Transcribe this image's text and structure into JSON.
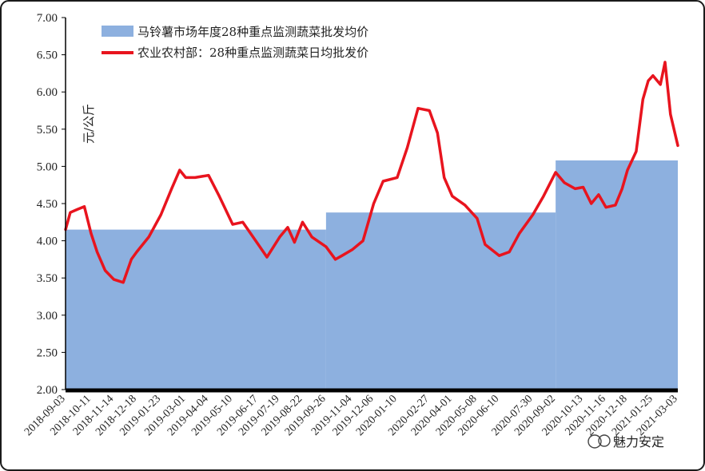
{
  "chart_data": {
    "type": "area",
    "ylabel": "元/公斤",
    "ylim": [
      2.0,
      7.0
    ],
    "yticks": [
      "2.00",
      "2.50",
      "3.00",
      "3.50",
      "4.00",
      "4.50",
      "5.00",
      "5.50",
      "6.00",
      "6.50",
      "7.00"
    ],
    "xticks": [
      "2018-09-03",
      "2018-10-11",
      "2018-11-14",
      "2018-12-18",
      "2019-01-23",
      "2019-03-01",
      "2019-04-04",
      "2019-05-10",
      "2019-06-17",
      "2019-07-19",
      "2019-08-22",
      "2019-09-26",
      "2019-11-04",
      "2019-12-06",
      "2020-01-10",
      "2020-02-27",
      "2020-04-01",
      "2020-05-08",
      "2020-06-10",
      "2020-07-30",
      "2020-09-02",
      "2020-10-13",
      "2020-11-16",
      "2020-12-18",
      "2021-01-25",
      "2021-03-03"
    ],
    "legend": {
      "area_label": "马铃薯市场年度28种重点监测蔬菜批发均价",
      "line_label": "农业农村部：28种重点监测蔬菜日均批发价"
    },
    "colors": {
      "area": "#8DB0DF",
      "line": "#E8141E",
      "axis": "#000000"
    },
    "series": [
      {
        "name": "马铃薯市场年度28种重点监测蔬菜批发均价",
        "kind": "step-area",
        "x": [
          "2018-09-03",
          "2019-09-26",
          "2020-09-02",
          "2021-03-03"
        ],
        "values": [
          4.15,
          4.38,
          5.08,
          5.08
        ]
      },
      {
        "name": "农业农村部：28种重点监测蔬菜日均批发价",
        "kind": "line",
        "x": [
          "2018-09-03",
          "2018-09-10",
          "2018-09-20",
          "2018-10-01",
          "2018-10-11",
          "2018-10-20",
          "2018-11-01",
          "2018-11-14",
          "2018-11-28",
          "2018-12-10",
          "2018-12-18",
          "2019-01-05",
          "2019-01-23",
          "2019-02-08",
          "2019-02-20",
          "2019-03-01",
          "2019-03-15",
          "2019-04-04",
          "2019-04-20",
          "2019-05-10",
          "2019-05-25",
          "2019-06-17",
          "2019-06-30",
          "2019-07-19",
          "2019-07-31",
          "2019-08-10",
          "2019-08-22",
          "2019-09-05",
          "2019-09-26",
          "2019-10-10",
          "2019-10-20",
          "2019-11-04",
          "2019-11-20",
          "2019-12-06",
          "2019-12-20",
          "2020-01-10",
          "2020-01-25",
          "2020-02-10",
          "2020-02-27",
          "2020-03-10",
          "2020-03-20",
          "2020-04-01",
          "2020-04-20",
          "2020-05-08",
          "2020-05-20",
          "2020-06-10",
          "2020-06-25",
          "2020-07-10",
          "2020-07-30",
          "2020-08-15",
          "2020-09-02",
          "2020-09-15",
          "2020-10-01",
          "2020-10-13",
          "2020-10-25",
          "2020-11-05",
          "2020-11-16",
          "2020-11-30",
          "2020-12-10",
          "2020-12-18",
          "2020-12-31",
          "2021-01-10",
          "2021-01-18",
          "2021-01-25",
          "2021-02-05",
          "2021-02-12",
          "2021-02-20",
          "2021-03-03"
        ],
        "values": [
          4.15,
          4.38,
          4.42,
          4.46,
          4.1,
          3.85,
          3.6,
          3.48,
          3.44,
          3.75,
          3.85,
          4.05,
          4.35,
          4.7,
          4.95,
          4.85,
          4.85,
          4.88,
          4.6,
          4.22,
          4.25,
          3.95,
          3.78,
          4.05,
          4.18,
          3.98,
          4.25,
          4.05,
          3.92,
          3.75,
          3.8,
          3.88,
          4.0,
          4.5,
          4.8,
          4.85,
          5.25,
          5.78,
          5.75,
          5.45,
          4.85,
          4.6,
          4.48,
          4.3,
          3.95,
          3.8,
          3.85,
          4.1,
          4.35,
          4.6,
          4.92,
          4.78,
          4.7,
          4.72,
          4.5,
          4.62,
          4.45,
          4.48,
          4.7,
          4.95,
          5.2,
          5.9,
          6.15,
          6.22,
          6.1,
          6.4,
          5.7,
          5.28
        ]
      }
    ]
  },
  "watermark": "魅力安定"
}
